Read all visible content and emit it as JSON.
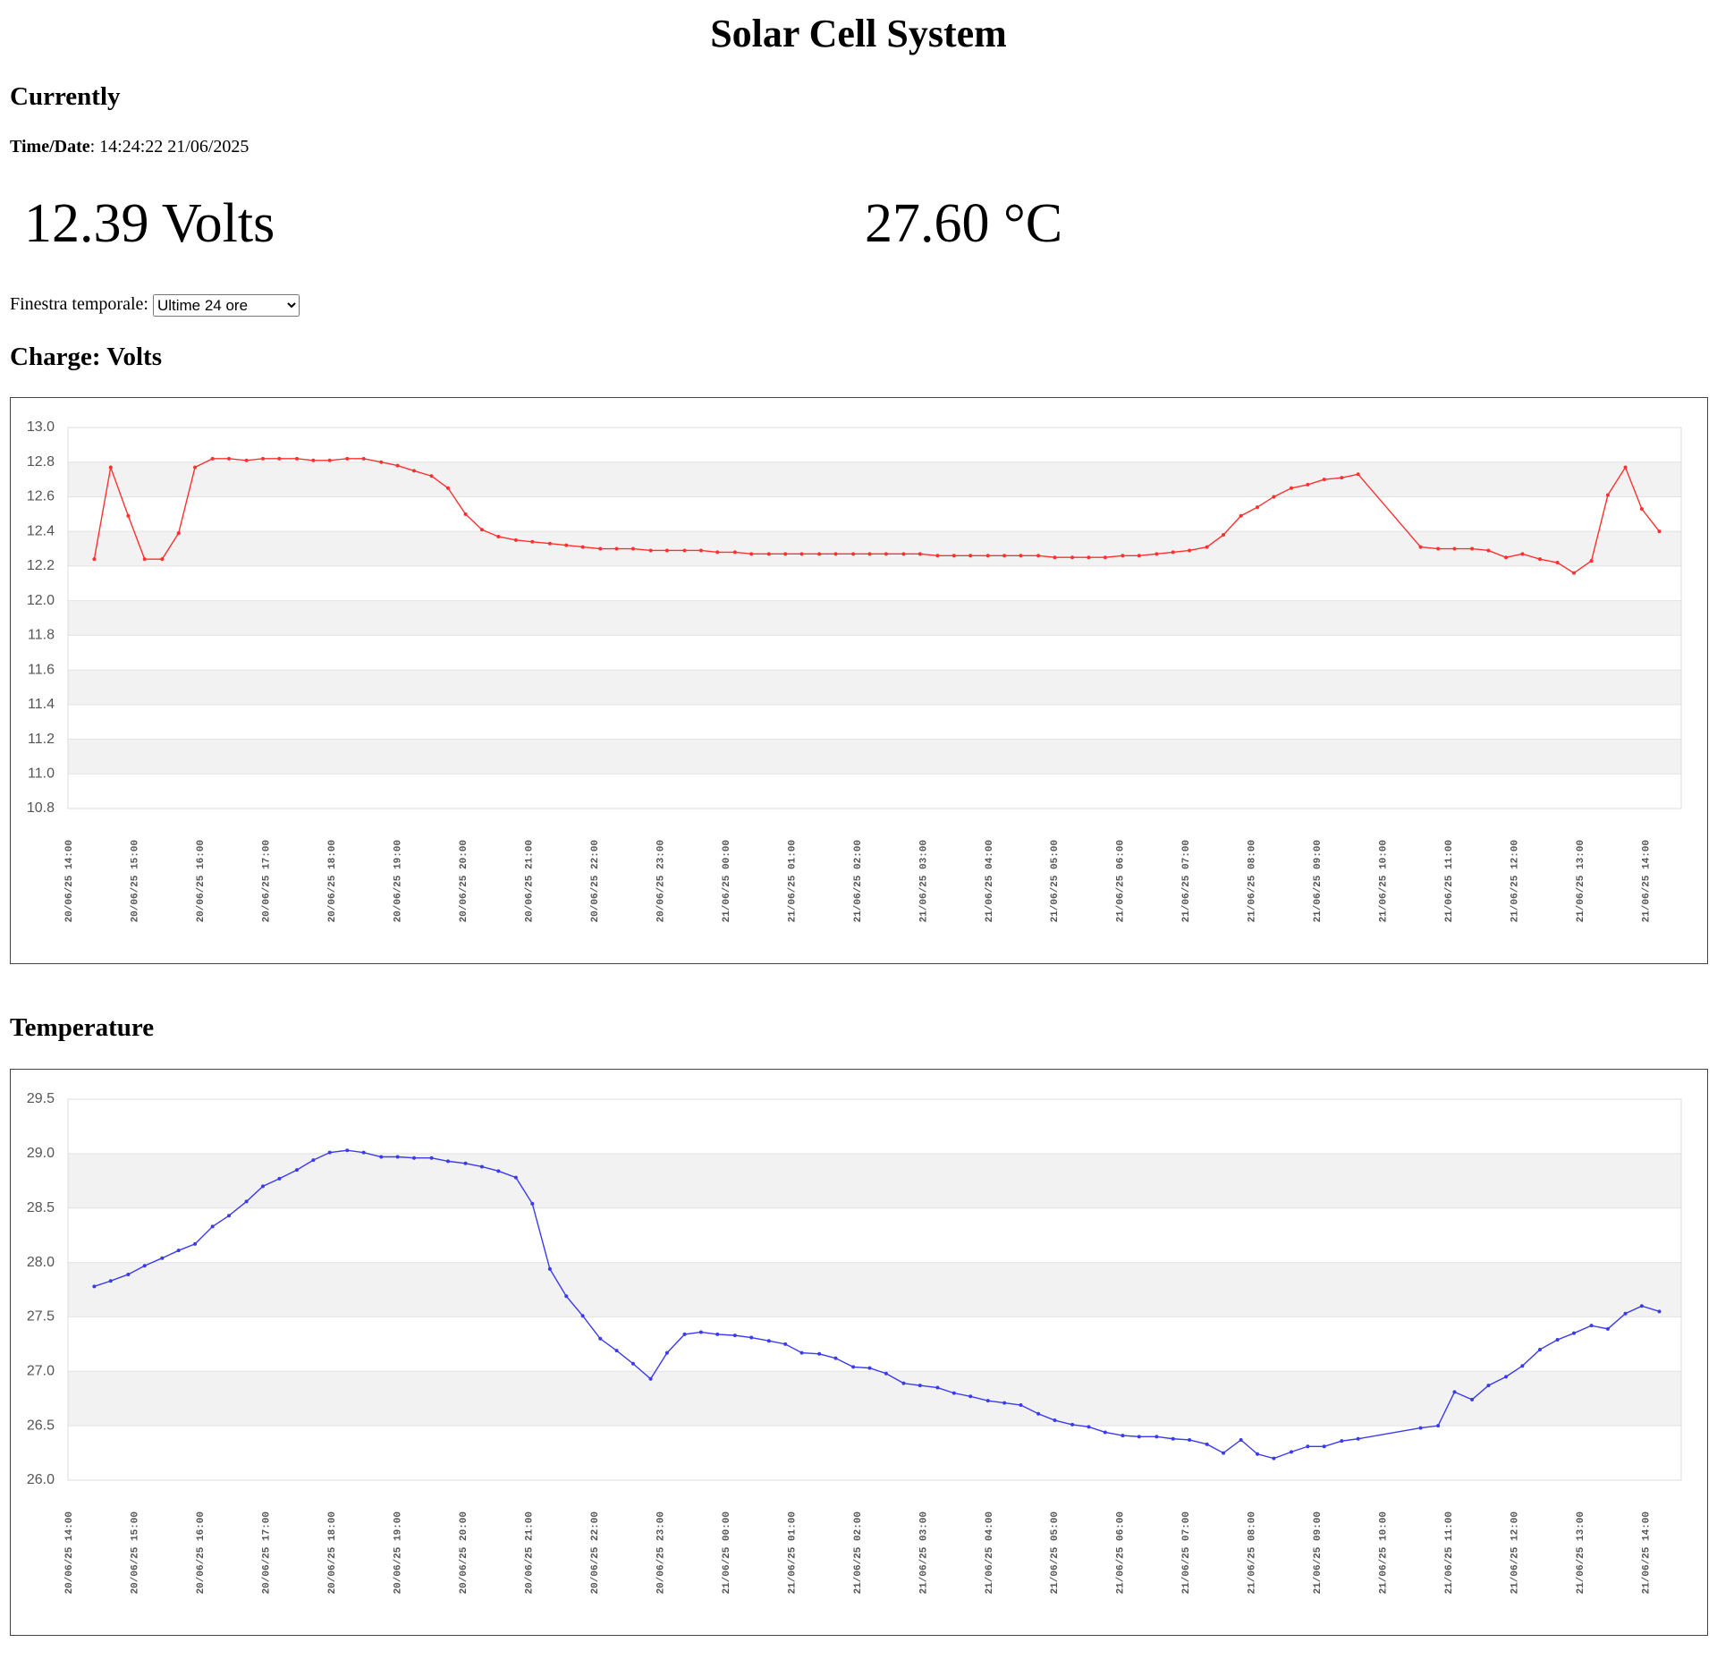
{
  "title": "Solar Cell System",
  "current": {
    "heading": "Currently",
    "time_label": "Time/Date",
    "separator": ":",
    "time_value": "14:24:22 21/06/2025",
    "voltage": "12.39 Volts",
    "temperature": "27.60 °C"
  },
  "selector": {
    "label": "Finestra temporale:",
    "option": "Ultime 24 ore"
  },
  "chart_data": [
    {
      "type": "line",
      "title": "Charge: Volts",
      "color": "#ff3030",
      "grid": true,
      "xlim": [
        "20/06/25 14:00",
        "21/06/25 14:33"
      ],
      "xticks": [
        "20/06/25 14:00",
        "20/06/25 15:00",
        "20/06/25 16:00",
        "20/06/25 17:00",
        "20/06/25 18:00",
        "20/06/25 19:00",
        "20/06/25 20:00",
        "20/06/25 21:00",
        "20/06/25 22:00",
        "20/06/25 23:00",
        "21/06/25 00:00",
        "21/06/25 01:00",
        "21/06/25 02:00",
        "21/06/25 03:00",
        "21/06/25 04:00",
        "21/06/25 05:00",
        "21/06/25 06:00",
        "21/06/25 07:00",
        "21/06/25 08:00",
        "21/06/25 09:00",
        "21/06/25 10:00",
        "21/06/25 11:00",
        "21/06/25 12:00",
        "21/06/25 13:00",
        "21/06/25 14:00"
      ],
      "ylim": [
        10.8,
        13
      ],
      "yticks": [
        10.8,
        {
          "value": 11,
          "label": "11.0"
        },
        11.2,
        11.4,
        11.6,
        11.8,
        {
          "value": 12,
          "label": "12.0"
        },
        12.2,
        12.4,
        12.6,
        12.8,
        {
          "value": 13,
          "label": "13.0"
        }
      ],
      "x": [
        "20/06/25 14:24",
        "20/06/25 14:39",
        "20/06/25 14:55",
        "20/06/25 15:10",
        "20/06/25 15:26",
        "20/06/25 15:41",
        "20/06/25 15:56",
        "20/06/25 16:12",
        "20/06/25 16:27",
        "20/06/25 16:43",
        "20/06/25 16:58",
        "20/06/25 17:13",
        "20/06/25 17:29",
        "20/06/25 17:44",
        "20/06/25 17:59",
        "20/06/25 18:15",
        "20/06/25 18:30",
        "20/06/25 18:46",
        "20/06/25 19:01",
        "20/06/25 19:16",
        "20/06/25 19:32",
        "20/06/25 19:47",
        "20/06/25 20:03",
        "20/06/25 20:18",
        "20/06/25 20:33",
        "20/06/25 20:49",
        "20/06/25 21:04",
        "20/06/25 21:20",
        "20/06/25 21:35",
        "20/06/25 21:50",
        "20/06/25 22:06",
        "20/06/25 22:21",
        "20/06/25 22:36",
        "20/06/25 22:52",
        "20/06/25 23:07",
        "20/06/25 23:23",
        "20/06/25 23:38",
        "20/06/25 23:53",
        "21/06/25 00:09",
        "21/06/25 00:24",
        "21/06/25 00:40",
        "21/06/25 00:55",
        "21/06/25 01:10",
        "21/06/25 01:26",
        "21/06/25 01:41",
        "21/06/25 01:57",
        "21/06/25 02:12",
        "21/06/25 02:27",
        "21/06/25 02:43",
        "21/06/25 02:58",
        "21/06/25 03:14",
        "21/06/25 03:29",
        "21/06/25 03:44",
        "21/06/25 04:00",
        "21/06/25 04:15",
        "21/06/25 04:30",
        "21/06/25 04:46",
        "21/06/25 05:01",
        "21/06/25 05:17",
        "21/06/25 05:32",
        "21/06/25 05:47",
        "21/06/25 06:03",
        "21/06/25 06:18",
        "21/06/25 06:34",
        "21/06/25 06:49",
        "21/06/25 07:04",
        "21/06/25 07:20",
        "21/06/25 07:35",
        "21/06/25 07:51",
        "21/06/25 08:06",
        "21/06/25 08:21",
        "21/06/25 08:37",
        "21/06/25 08:52",
        "21/06/25 09:07",
        "21/06/25 09:23",
        "21/06/25 09:38",
        "21/06/25 10:35",
        "21/06/25 10:51",
        "21/06/25 11:06",
        "21/06/25 11:22",
        "21/06/25 11:37",
        "21/06/25 11:53",
        "21/06/25 12:08",
        "21/06/25 12:24",
        "21/06/25 12:40",
        "21/06/25 12:55",
        "21/06/25 13:11",
        "21/06/25 13:26",
        "21/06/25 13:42",
        "21/06/25 13:57",
        "21/06/25 14:13"
      ],
      "values": [
        12.24,
        12.77,
        12.49,
        12.24,
        12.24,
        12.39,
        12.77,
        12.82,
        12.82,
        12.81,
        12.82,
        12.82,
        12.82,
        12.81,
        12.81,
        12.82,
        12.82,
        12.8,
        12.78,
        12.75,
        12.72,
        12.65,
        12.5,
        12.41,
        12.37,
        12.35,
        12.34,
        12.33,
        12.32,
        12.31,
        12.3,
        12.3,
        12.3,
        12.29,
        12.29,
        12.29,
        12.29,
        12.28,
        12.28,
        12.27,
        12.27,
        12.27,
        12.27,
        12.27,
        12.27,
        12.27,
        12.27,
        12.27,
        12.27,
        12.27,
        12.26,
        12.26,
        12.26,
        12.26,
        12.26,
        12.26,
        12.26,
        12.25,
        12.25,
        12.25,
        12.25,
        12.26,
        12.26,
        12.27,
        12.28,
        12.29,
        12.31,
        12.38,
        12.49,
        12.54,
        12.6,
        12.65,
        12.67,
        12.7,
        12.71,
        12.73,
        12.31,
        12.3,
        12.3,
        12.3,
        12.29,
        12.25,
        12.27,
        12.24,
        12.22,
        12.16,
        12.23,
        12.61,
        12.77,
        12.53,
        12.4
      ]
    },
    {
      "type": "line",
      "title": "Temperature",
      "color": "#3a3aee",
      "grid": true,
      "xlim": [
        "20/06/25 14:00",
        "21/06/25 14:33"
      ],
      "xticks": [
        "20/06/25 14:00",
        "20/06/25 15:00",
        "20/06/25 16:00",
        "20/06/25 17:00",
        "20/06/25 18:00",
        "20/06/25 19:00",
        "20/06/25 20:00",
        "20/06/25 21:00",
        "20/06/25 22:00",
        "20/06/25 23:00",
        "21/06/25 00:00",
        "21/06/25 01:00",
        "21/06/25 02:00",
        "21/06/25 03:00",
        "21/06/25 04:00",
        "21/06/25 05:00",
        "21/06/25 06:00",
        "21/06/25 07:00",
        "21/06/25 08:00",
        "21/06/25 09:00",
        "21/06/25 10:00",
        "21/06/25 11:00",
        "21/06/25 12:00",
        "21/06/25 13:00",
        "21/06/25 14:00"
      ],
      "ylim": [
        26,
        29.5
      ],
      "yticks": [
        {
          "value": 26,
          "label": "26.0"
        },
        26.5,
        {
          "value": 27,
          "label": "27.0"
        },
        27.5,
        {
          "value": 28,
          "label": "28.0"
        },
        28.5,
        {
          "value": 29,
          "label": "29.0"
        },
        29.5
      ],
      "x": [
        "20/06/25 14:24",
        "20/06/25 14:39",
        "20/06/25 14:55",
        "20/06/25 15:10",
        "20/06/25 15:26",
        "20/06/25 15:41",
        "20/06/25 15:56",
        "20/06/25 16:12",
        "20/06/25 16:27",
        "20/06/25 16:43",
        "20/06/25 16:58",
        "20/06/25 17:13",
        "20/06/25 17:29",
        "20/06/25 17:44",
        "20/06/25 17:59",
        "20/06/25 18:15",
        "20/06/25 18:30",
        "20/06/25 18:46",
        "20/06/25 19:01",
        "20/06/25 19:16",
        "20/06/25 19:32",
        "20/06/25 19:47",
        "20/06/25 20:03",
        "20/06/25 20:18",
        "20/06/25 20:33",
        "20/06/25 20:49",
        "20/06/25 21:04",
        "20/06/25 21:20",
        "20/06/25 21:35",
        "20/06/25 21:50",
        "20/06/25 22:06",
        "20/06/25 22:21",
        "20/06/25 22:36",
        "20/06/25 22:52",
        "20/06/25 23:07",
        "20/06/25 23:23",
        "20/06/25 23:38",
        "20/06/25 23:53",
        "21/06/25 00:09",
        "21/06/25 00:24",
        "21/06/25 00:40",
        "21/06/25 00:55",
        "21/06/25 01:10",
        "21/06/25 01:26",
        "21/06/25 01:41",
        "21/06/25 01:57",
        "21/06/25 02:12",
        "21/06/25 02:27",
        "21/06/25 02:43",
        "21/06/25 02:58",
        "21/06/25 03:14",
        "21/06/25 03:29",
        "21/06/25 03:44",
        "21/06/25 04:00",
        "21/06/25 04:15",
        "21/06/25 04:30",
        "21/06/25 04:46",
        "21/06/25 05:01",
        "21/06/25 05:17",
        "21/06/25 05:32",
        "21/06/25 05:47",
        "21/06/25 06:03",
        "21/06/25 06:18",
        "21/06/25 06:34",
        "21/06/25 06:49",
        "21/06/25 07:04",
        "21/06/25 07:20",
        "21/06/25 07:35",
        "21/06/25 07:51",
        "21/06/25 08:06",
        "21/06/25 08:21",
        "21/06/25 08:37",
        "21/06/25 08:52",
        "21/06/25 09:07",
        "21/06/25 09:23",
        "21/06/25 09:38",
        "21/06/25 10:35",
        "21/06/25 10:51",
        "21/06/25 11:06",
        "21/06/25 11:22",
        "21/06/25 11:37",
        "21/06/25 11:53",
        "21/06/25 12:08",
        "21/06/25 12:24",
        "21/06/25 12:40",
        "21/06/25 12:55",
        "21/06/25 13:11",
        "21/06/25 13:26",
        "21/06/25 13:42",
        "21/06/25 13:57",
        "21/06/25 14:13"
      ],
      "values": [
        27.78,
        27.83,
        27.89,
        27.97,
        28.04,
        28.11,
        28.17,
        28.33,
        28.43,
        28.56,
        28.7,
        28.77,
        28.85,
        28.94,
        29.01,
        29.03,
        29.01,
        28.97,
        28.97,
        28.96,
        28.96,
        28.93,
        28.91,
        28.88,
        28.84,
        28.78,
        28.54,
        27.94,
        27.69,
        27.51,
        27.3,
        27.19,
        27.07,
        26.93,
        27.17,
        27.34,
        27.36,
        27.34,
        27.33,
        27.31,
        27.28,
        27.25,
        27.17,
        27.16,
        27.12,
        27.04,
        27.03,
        26.98,
        26.89,
        26.87,
        26.85,
        26.8,
        26.77,
        26.73,
        26.71,
        26.69,
        26.61,
        26.55,
        26.51,
        26.49,
        26.44,
        26.41,
        26.4,
        26.4,
        26.38,
        26.37,
        26.33,
        26.25,
        26.37,
        26.24,
        26.2,
        26.26,
        26.31,
        26.31,
        26.36,
        26.38,
        26.48,
        26.5,
        26.81,
        26.74,
        26.87,
        26.95,
        27.05,
        27.2,
        27.29,
        27.35,
        27.42,
        27.39,
        27.53,
        27.6,
        27.55
      ]
    }
  ]
}
